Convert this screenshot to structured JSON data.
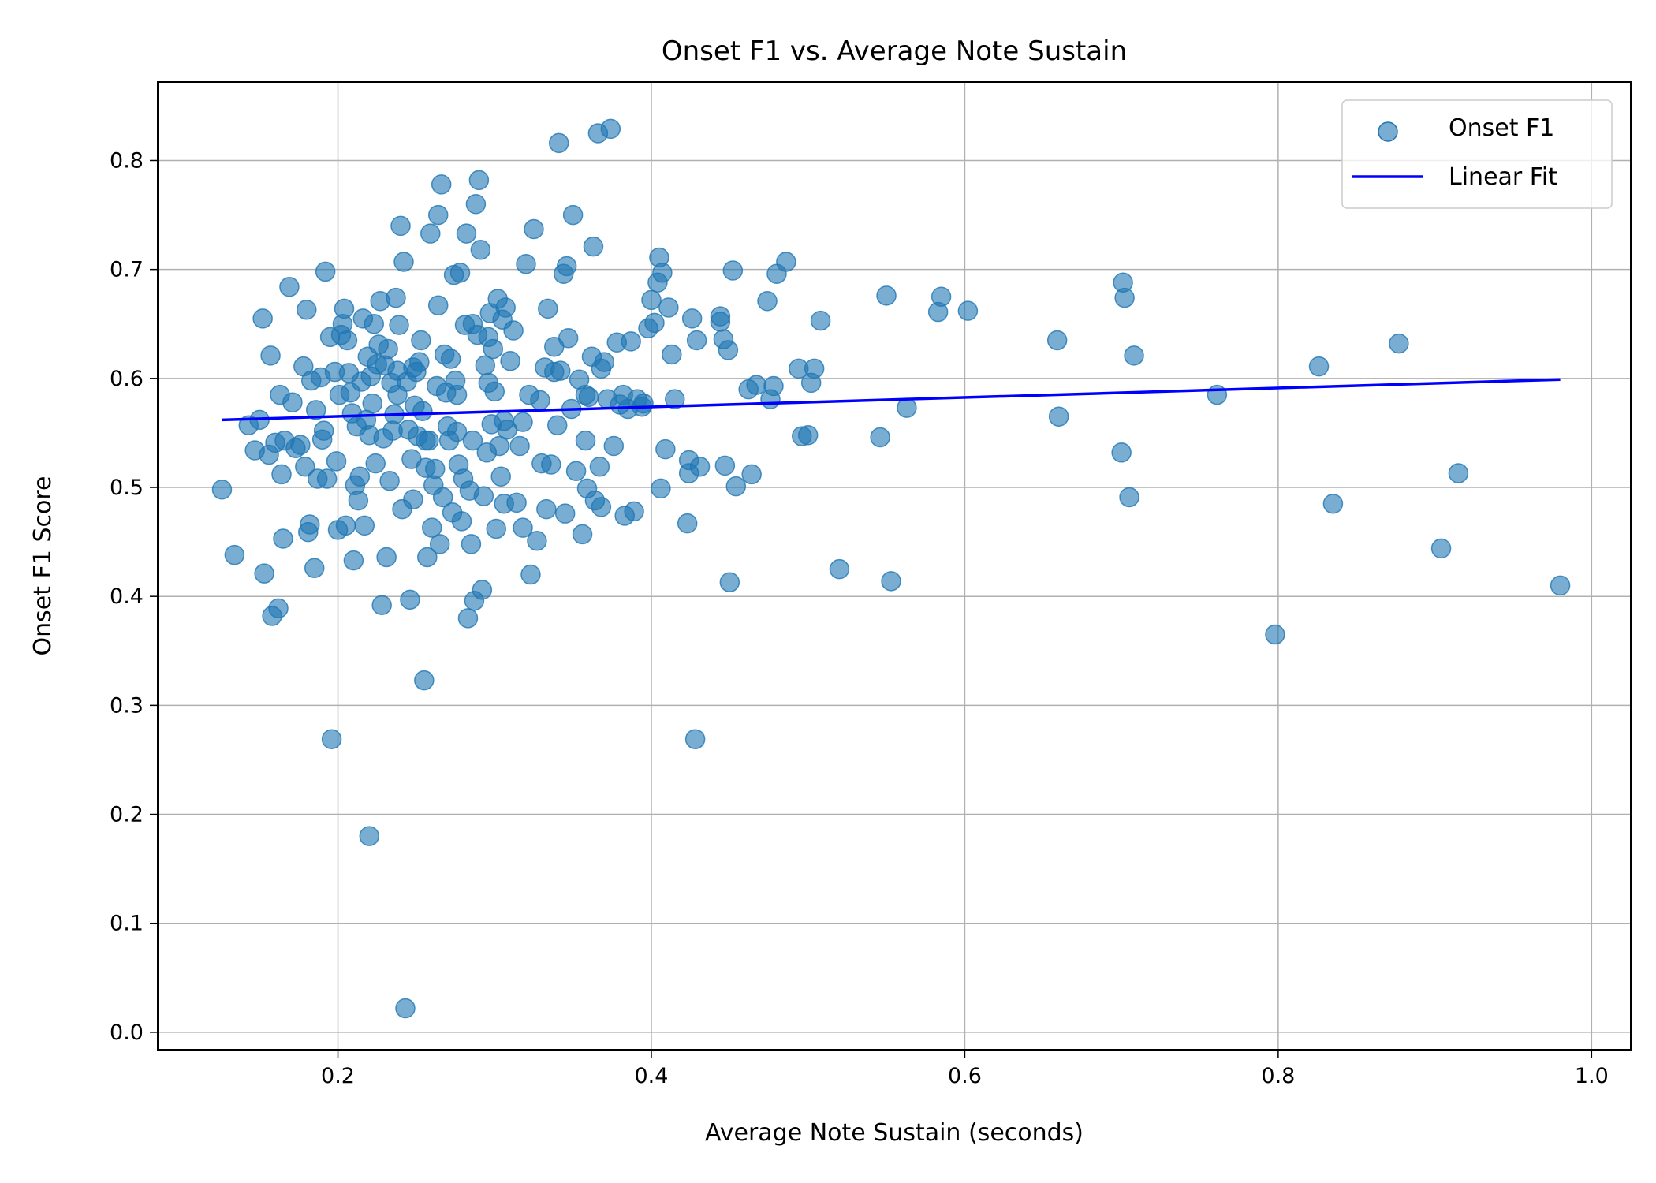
{
  "colors": {
    "point_fill": "#1f77b4",
    "point_opacity": 0.6,
    "fit_line": "#0000ff",
    "grid": "#b0b0b0",
    "axes": "#000000",
    "legend_border": "#cccccc"
  },
  "chart_data": {
    "type": "scatter",
    "title": "Onset F1 vs. Average Note Sustain",
    "xlabel": "Average Note Sustain (seconds)",
    "ylabel": "Onset F1 Score",
    "xlim": [
      0.085,
      1.025
    ],
    "ylim": [
      -0.016,
      0.872
    ],
    "xticks": [
      0.2,
      0.4,
      0.6,
      0.8,
      1.0
    ],
    "xtick_labels": [
      "0.2",
      "0.4",
      "0.6",
      "0.8",
      "1.0"
    ],
    "yticks": [
      0.0,
      0.1,
      0.2,
      0.3,
      0.4,
      0.5,
      0.6,
      0.7,
      0.8
    ],
    "ytick_labels": [
      "0.0",
      "0.1",
      "0.2",
      "0.3",
      "0.4",
      "0.5",
      "0.6",
      "0.7",
      "0.8"
    ],
    "grid": true,
    "legend_position": "top-right",
    "legend": [
      {
        "name": "Onset F1",
        "kind": "marker"
      },
      {
        "name": "Linear Fit",
        "kind": "line"
      }
    ],
    "series": [
      {
        "name": "Onset F1",
        "kind": "scatter",
        "points": [
          [
            0.126,
            0.498
          ],
          [
            0.134,
            0.438
          ],
          [
            0.143,
            0.557
          ],
          [
            0.147,
            0.534
          ],
          [
            0.15,
            0.562
          ],
          [
            0.152,
            0.655
          ],
          [
            0.153,
            0.421
          ],
          [
            0.156,
            0.53
          ],
          [
            0.157,
            0.621
          ],
          [
            0.158,
            0.382
          ],
          [
            0.16,
            0.541
          ],
          [
            0.162,
            0.389
          ],
          [
            0.163,
            0.585
          ],
          [
            0.164,
            0.512
          ],
          [
            0.165,
            0.453
          ],
          [
            0.166,
            0.543
          ],
          [
            0.169,
            0.684
          ],
          [
            0.171,
            0.578
          ],
          [
            0.173,
            0.536
          ],
          [
            0.176,
            0.539
          ],
          [
            0.178,
            0.611
          ],
          [
            0.179,
            0.519
          ],
          [
            0.18,
            0.663
          ],
          [
            0.181,
            0.459
          ],
          [
            0.182,
            0.466
          ],
          [
            0.183,
            0.598
          ],
          [
            0.185,
            0.426
          ],
          [
            0.186,
            0.571
          ],
          [
            0.187,
            0.508
          ],
          [
            0.189,
            0.601
          ],
          [
            0.19,
            0.544
          ],
          [
            0.191,
            0.552
          ],
          [
            0.192,
            0.698
          ],
          [
            0.193,
            0.508
          ],
          [
            0.195,
            0.638
          ],
          [
            0.196,
            0.269
          ],
          [
            0.198,
            0.606
          ],
          [
            0.199,
            0.524
          ],
          [
            0.2,
            0.461
          ],
          [
            0.201,
            0.585
          ],
          [
            0.202,
            0.64
          ],
          [
            0.203,
            0.65
          ],
          [
            0.204,
            0.664
          ],
          [
            0.205,
            0.465
          ],
          [
            0.206,
            0.635
          ],
          [
            0.207,
            0.605
          ],
          [
            0.208,
            0.587
          ],
          [
            0.209,
            0.568
          ],
          [
            0.21,
            0.433
          ],
          [
            0.211,
            0.502
          ],
          [
            0.212,
            0.556
          ],
          [
            0.213,
            0.488
          ],
          [
            0.214,
            0.51
          ],
          [
            0.215,
            0.597
          ],
          [
            0.216,
            0.655
          ],
          [
            0.217,
            0.465
          ],
          [
            0.218,
            0.562
          ],
          [
            0.219,
            0.62
          ],
          [
            0.22,
            0.548
          ],
          [
            0.221,
            0.602
          ],
          [
            0.222,
            0.577
          ],
          [
            0.223,
            0.65
          ],
          [
            0.224,
            0.522
          ],
          [
            0.225,
            0.613
          ],
          [
            0.226,
            0.631
          ],
          [
            0.227,
            0.671
          ],
          [
            0.228,
            0.392
          ],
          [
            0.229,
            0.545
          ],
          [
            0.23,
            0.612
          ],
          [
            0.231,
            0.436
          ],
          [
            0.232,
            0.627
          ],
          [
            0.233,
            0.506
          ],
          [
            0.234,
            0.596
          ],
          [
            0.235,
            0.552
          ],
          [
            0.236,
            0.567
          ],
          [
            0.237,
            0.674
          ],
          [
            0.238,
            0.607
          ],
          [
            0.239,
            0.649
          ],
          [
            0.24,
            0.74
          ],
          [
            0.241,
            0.48
          ],
          [
            0.242,
            0.707
          ],
          [
            0.243,
            0.022
          ],
          [
            0.244,
            0.597
          ],
          [
            0.245,
            0.553
          ],
          [
            0.246,
            0.397
          ],
          [
            0.247,
            0.526
          ],
          [
            0.248,
            0.489
          ],
          [
            0.249,
            0.575
          ],
          [
            0.25,
            0.606
          ],
          [
            0.251,
            0.547
          ],
          [
            0.252,
            0.615
          ],
          [
            0.253,
            0.635
          ],
          [
            0.254,
            0.57
          ],
          [
            0.255,
            0.323
          ],
          [
            0.256,
            0.518
          ],
          [
            0.257,
            0.436
          ],
          [
            0.258,
            0.543
          ],
          [
            0.259,
            0.733
          ],
          [
            0.26,
            0.463
          ],
          [
            0.261,
            0.502
          ],
          [
            0.262,
            0.517
          ],
          [
            0.263,
            0.593
          ],
          [
            0.264,
            0.75
          ],
          [
            0.265,
            0.448
          ],
          [
            0.266,
            0.778
          ],
          [
            0.267,
            0.491
          ],
          [
            0.268,
            0.622
          ],
          [
            0.269,
            0.587
          ],
          [
            0.27,
            0.556
          ],
          [
            0.271,
            0.543
          ],
          [
            0.272,
            0.618
          ],
          [
            0.273,
            0.477
          ],
          [
            0.274,
            0.695
          ],
          [
            0.275,
            0.598
          ],
          [
            0.276,
            0.551
          ],
          [
            0.277,
            0.521
          ],
          [
            0.278,
            0.697
          ],
          [
            0.279,
            0.469
          ],
          [
            0.28,
            0.508
          ],
          [
            0.281,
            0.649
          ],
          [
            0.282,
            0.733
          ],
          [
            0.283,
            0.38
          ],
          [
            0.284,
            0.497
          ],
          [
            0.285,
            0.448
          ],
          [
            0.286,
            0.543
          ],
          [
            0.287,
            0.396
          ],
          [
            0.288,
            0.76
          ],
          [
            0.289,
            0.64
          ],
          [
            0.29,
            0.782
          ],
          [
            0.291,
            0.718
          ],
          [
            0.292,
            0.406
          ],
          [
            0.293,
            0.492
          ],
          [
            0.294,
            0.612
          ],
          [
            0.295,
            0.532
          ],
          [
            0.296,
            0.596
          ],
          [
            0.297,
            0.66
          ],
          [
            0.298,
            0.558
          ],
          [
            0.299,
            0.627
          ],
          [
            0.3,
            0.588
          ],
          [
            0.301,
            0.462
          ],
          [
            0.302,
            0.673
          ],
          [
            0.303,
            0.538
          ],
          [
            0.304,
            0.51
          ],
          [
            0.305,
            0.654
          ],
          [
            0.306,
            0.485
          ],
          [
            0.307,
            0.665
          ],
          [
            0.308,
            0.553
          ],
          [
            0.31,
            0.616
          ],
          [
            0.312,
            0.644
          ],
          [
            0.314,
            0.486
          ],
          [
            0.316,
            0.538
          ],
          [
            0.318,
            0.463
          ],
          [
            0.32,
            0.705
          ],
          [
            0.322,
            0.585
          ],
          [
            0.323,
            0.42
          ],
          [
            0.325,
            0.737
          ],
          [
            0.327,
            0.451
          ],
          [
            0.329,
            0.58
          ],
          [
            0.33,
            0.522
          ],
          [
            0.332,
            0.61
          ],
          [
            0.333,
            0.48
          ],
          [
            0.334,
            0.664
          ],
          [
            0.336,
            0.521
          ],
          [
            0.338,
            0.629
          ],
          [
            0.34,
            0.557
          ],
          [
            0.341,
            0.816
          ],
          [
            0.342,
            0.607
          ],
          [
            0.344,
            0.696
          ],
          [
            0.345,
            0.476
          ],
          [
            0.346,
            0.703
          ],
          [
            0.347,
            0.637
          ],
          [
            0.349,
            0.572
          ],
          [
            0.35,
            0.75
          ],
          [
            0.352,
            0.515
          ],
          [
            0.354,
            0.599
          ],
          [
            0.356,
            0.457
          ],
          [
            0.358,
            0.543
          ],
          [
            0.359,
            0.499
          ],
          [
            0.36,
            0.583
          ],
          [
            0.362,
            0.62
          ],
          [
            0.363,
            0.721
          ],
          [
            0.364,
            0.488
          ],
          [
            0.366,
            0.825
          ],
          [
            0.367,
            0.519
          ],
          [
            0.368,
            0.482
          ],
          [
            0.37,
            0.615
          ],
          [
            0.372,
            0.581
          ],
          [
            0.374,
            0.829
          ],
          [
            0.376,
            0.538
          ],
          [
            0.378,
            0.633
          ],
          [
            0.38,
            0.576
          ],
          [
            0.382,
            0.585
          ],
          [
            0.383,
            0.474
          ],
          [
            0.385,
            0.572
          ],
          [
            0.387,
            0.634
          ],
          [
            0.389,
            0.478
          ],
          [
            0.391,
            0.581
          ],
          [
            0.394,
            0.574
          ],
          [
            0.398,
            0.646
          ],
          [
            0.4,
            0.672
          ],
          [
            0.402,
            0.651
          ],
          [
            0.404,
            0.688
          ],
          [
            0.405,
            0.711
          ],
          [
            0.406,
            0.499
          ],
          [
            0.407,
            0.697
          ],
          [
            0.409,
            0.535
          ],
          [
            0.411,
            0.665
          ],
          [
            0.413,
            0.622
          ],
          [
            0.415,
            0.581
          ],
          [
            0.423,
            0.467
          ],
          [
            0.424,
            0.513
          ],
          [
            0.426,
            0.655
          ],
          [
            0.428,
            0.269
          ],
          [
            0.429,
            0.635
          ],
          [
            0.431,
            0.519
          ],
          [
            0.444,
            0.657
          ],
          [
            0.446,
            0.636
          ],
          [
            0.447,
            0.52
          ],
          [
            0.449,
            0.626
          ],
          [
            0.45,
            0.413
          ],
          [
            0.452,
            0.699
          ],
          [
            0.454,
            0.501
          ],
          [
            0.462,
            0.59
          ],
          [
            0.464,
            0.512
          ],
          [
            0.467,
            0.594
          ],
          [
            0.474,
            0.671
          ],
          [
            0.476,
            0.581
          ],
          [
            0.478,
            0.593
          ],
          [
            0.48,
            0.696
          ],
          [
            0.486,
            0.707
          ],
          [
            0.494,
            0.609
          ],
          [
            0.496,
            0.547
          ],
          [
            0.5,
            0.548
          ],
          [
            0.502,
            0.596
          ],
          [
            0.504,
            0.609
          ],
          [
            0.508,
            0.653
          ],
          [
            0.52,
            0.425
          ],
          [
            0.546,
            0.546
          ],
          [
            0.55,
            0.676
          ],
          [
            0.553,
            0.414
          ],
          [
            0.563,
            0.573
          ],
          [
            0.583,
            0.661
          ],
          [
            0.585,
            0.675
          ],
          [
            0.602,
            0.662
          ],
          [
            0.659,
            0.635
          ],
          [
            0.66,
            0.565
          ],
          [
            0.7,
            0.532
          ],
          [
            0.701,
            0.688
          ],
          [
            0.702,
            0.674
          ],
          [
            0.705,
            0.491
          ],
          [
            0.708,
            0.621
          ],
          [
            0.761,
            0.585
          ],
          [
            0.798,
            0.365
          ],
          [
            0.826,
            0.611
          ],
          [
            0.835,
            0.485
          ],
          [
            0.877,
            0.632
          ],
          [
            0.904,
            0.444
          ],
          [
            0.915,
            0.513
          ],
          [
            0.98,
            0.41
          ],
          [
            0.22,
            0.18
          ],
          [
            0.238,
            0.585
          ],
          [
            0.256,
            0.543
          ],
          [
            0.276,
            0.585
          ],
          [
            0.296,
            0.638
          ],
          [
            0.318,
            0.56
          ],
          [
            0.338,
            0.606
          ],
          [
            0.358,
            0.585
          ],
          [
            0.368,
            0.609
          ],
          [
            0.395,
            0.577
          ],
          [
            0.424,
            0.525
          ],
          [
            0.444,
            0.652
          ],
          [
            0.264,
            0.667
          ],
          [
            0.286,
            0.65
          ],
          [
            0.306,
            0.561
          ],
          [
            0.248,
            0.61
          ]
        ]
      },
      {
        "name": "Linear Fit",
        "kind": "line",
        "points": [
          [
            0.126,
            0.562
          ],
          [
            0.98,
            0.599
          ]
        ]
      }
    ]
  }
}
